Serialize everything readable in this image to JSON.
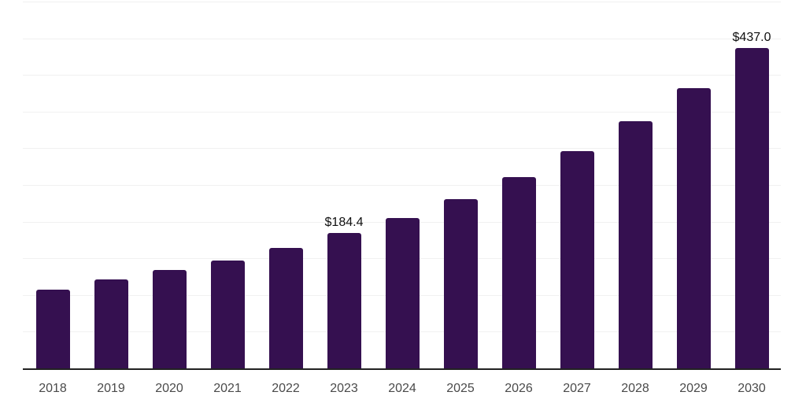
{
  "chart_data": {
    "type": "bar",
    "title": "",
    "xlabel": "",
    "ylabel": "",
    "categories": [
      "2018",
      "2019",
      "2020",
      "2021",
      "2022",
      "2023",
      "2024",
      "2025",
      "2026",
      "2027",
      "2028",
      "2029",
      "2030"
    ],
    "values": [
      107.4,
      121.3,
      134.1,
      147.0,
      164.1,
      184.4,
      204.8,
      230.4,
      260.4,
      295.7,
      336.4,
      382.4,
      437.0
    ],
    "value_labels": [
      {
        "category": "2023",
        "text": "$184.4"
      },
      {
        "category": "2030",
        "text": "$437.0"
      }
    ],
    "ylim": [
      0,
      500
    ],
    "grid_step": 50,
    "grid": "horizontal",
    "legend": "none",
    "colors": {
      "bar": "#351050",
      "gridline": "#f1f1f1",
      "axis_line": "#222222",
      "tick_text": "#4a4a4a",
      "value_label_text": "#111111"
    }
  }
}
